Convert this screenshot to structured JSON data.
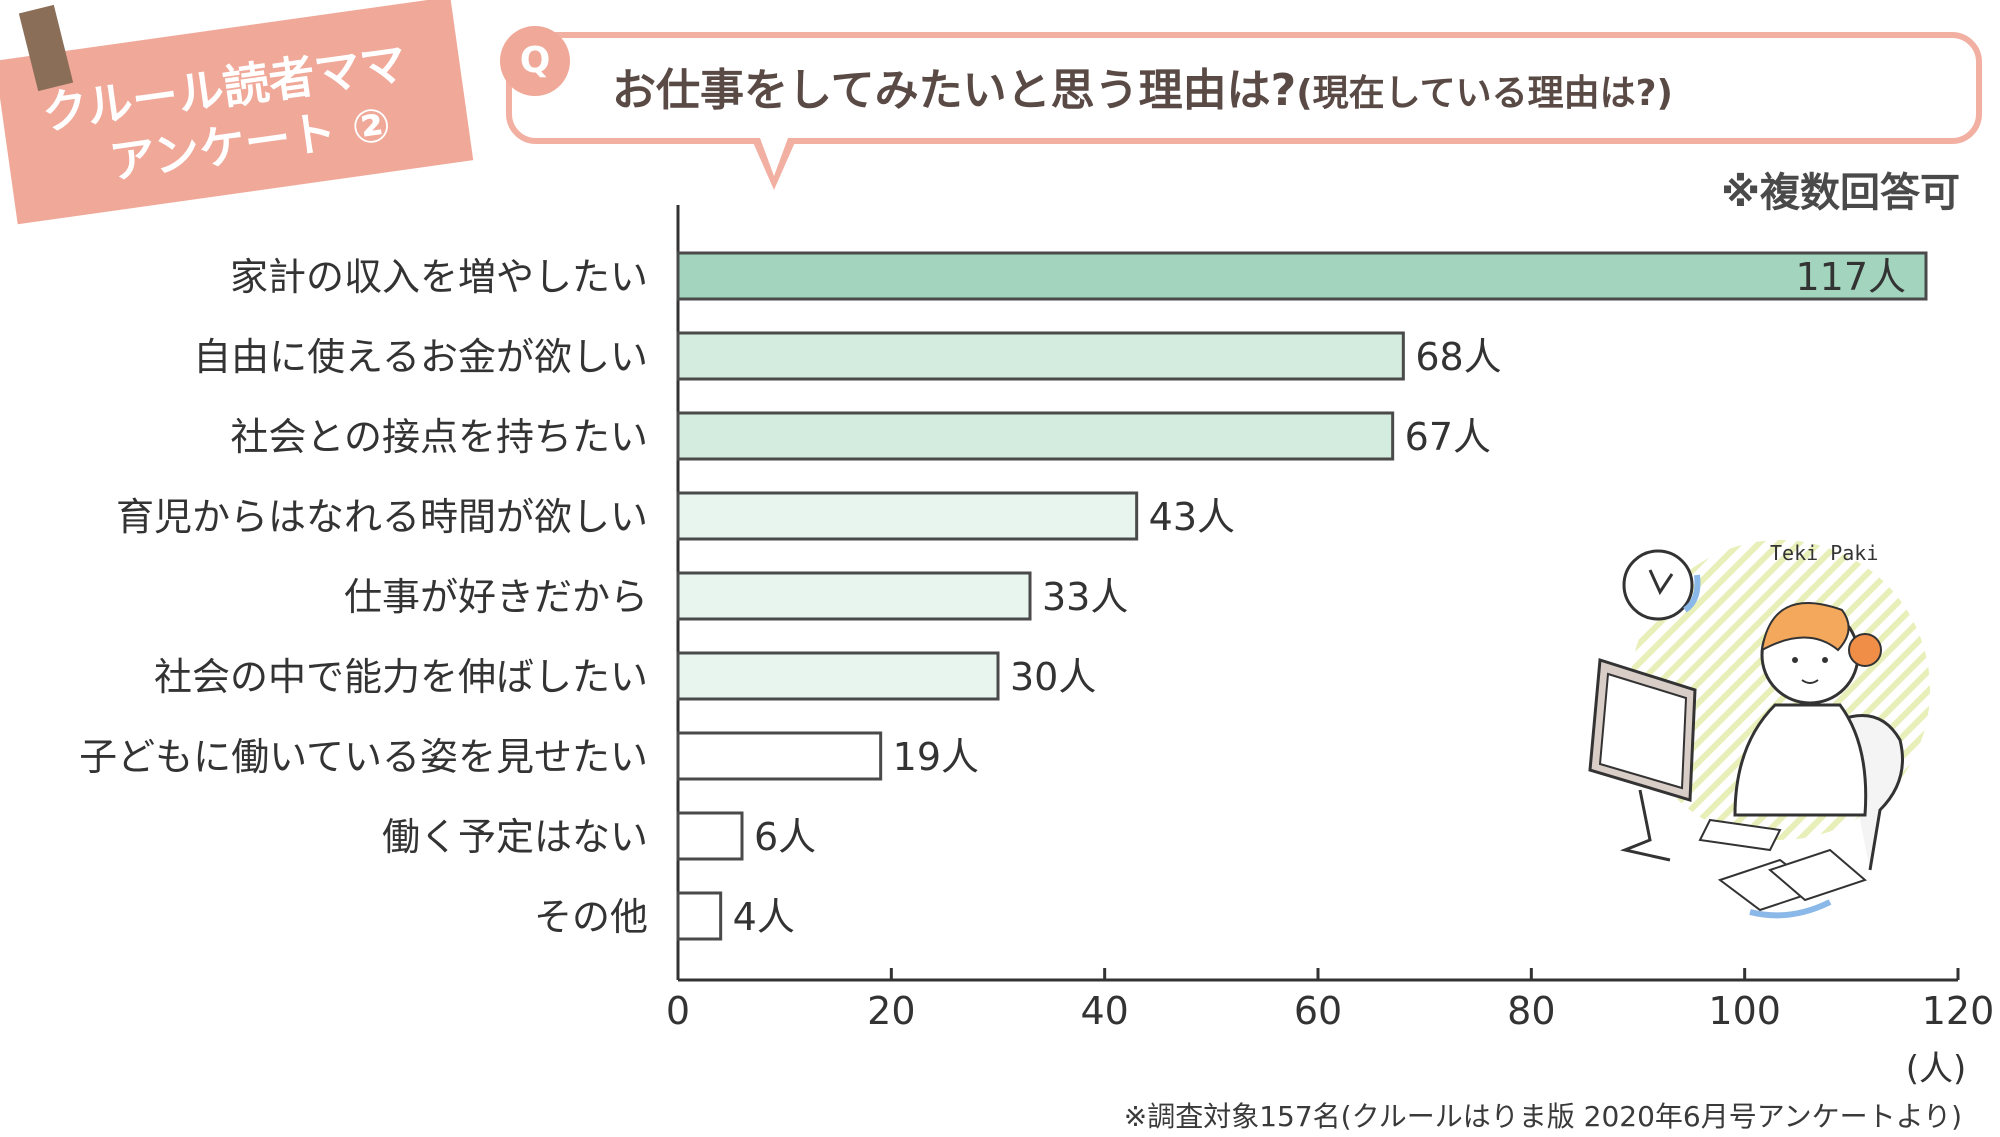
{
  "header": {
    "tag_line1": "クルール読者ママ",
    "tag_line2": "アンケート ②",
    "q_mark": "Q",
    "question": "お仕事をしてみたいと思う理由は?",
    "question_sub": "(現在している理由は?)",
    "multi_answer_note": "※複数回答可"
  },
  "footnote": "※調査対象157名(クルールはりま版 2020年6月号アンケートより)",
  "illustration": {
    "caption": "Teki Paki"
  },
  "colors": {
    "tag": "#f0a898",
    "bubble_border": "#f2b0a3",
    "bar_dark": "#a2d4be",
    "bar_mid": "#d4ebe0",
    "bar_light": "#e8f4ee",
    "bar_white": "#ffffff",
    "bar_stroke": "#4a4a4a"
  },
  "chart_data": {
    "type": "bar",
    "orientation": "horizontal",
    "categories": [
      "家計の収入を増やしたい",
      "自由に使えるお金が欲しい",
      "社会との接点を持ちたい",
      "育児からはなれる時間が欲しい",
      "仕事が好きだから",
      "社会の中で能力を伸ばしたい",
      "子どもに働いている姿を見せたい",
      "働く予定はない",
      "その他"
    ],
    "values": [
      117,
      68,
      67,
      43,
      33,
      30,
      19,
      6,
      4
    ],
    "value_labels": [
      "117人",
      "68人",
      "67人",
      "43人",
      "33人",
      "30人",
      "19人",
      "6人",
      "4人"
    ],
    "bar_shades": [
      "dark",
      "mid",
      "mid",
      "light",
      "light",
      "light",
      "white",
      "white",
      "white"
    ],
    "xlim": [
      0,
      120
    ],
    "xticks": [
      "0",
      "20",
      "40",
      "60",
      "80",
      "100",
      "120"
    ],
    "xunit": "(人)",
    "grid": false
  }
}
